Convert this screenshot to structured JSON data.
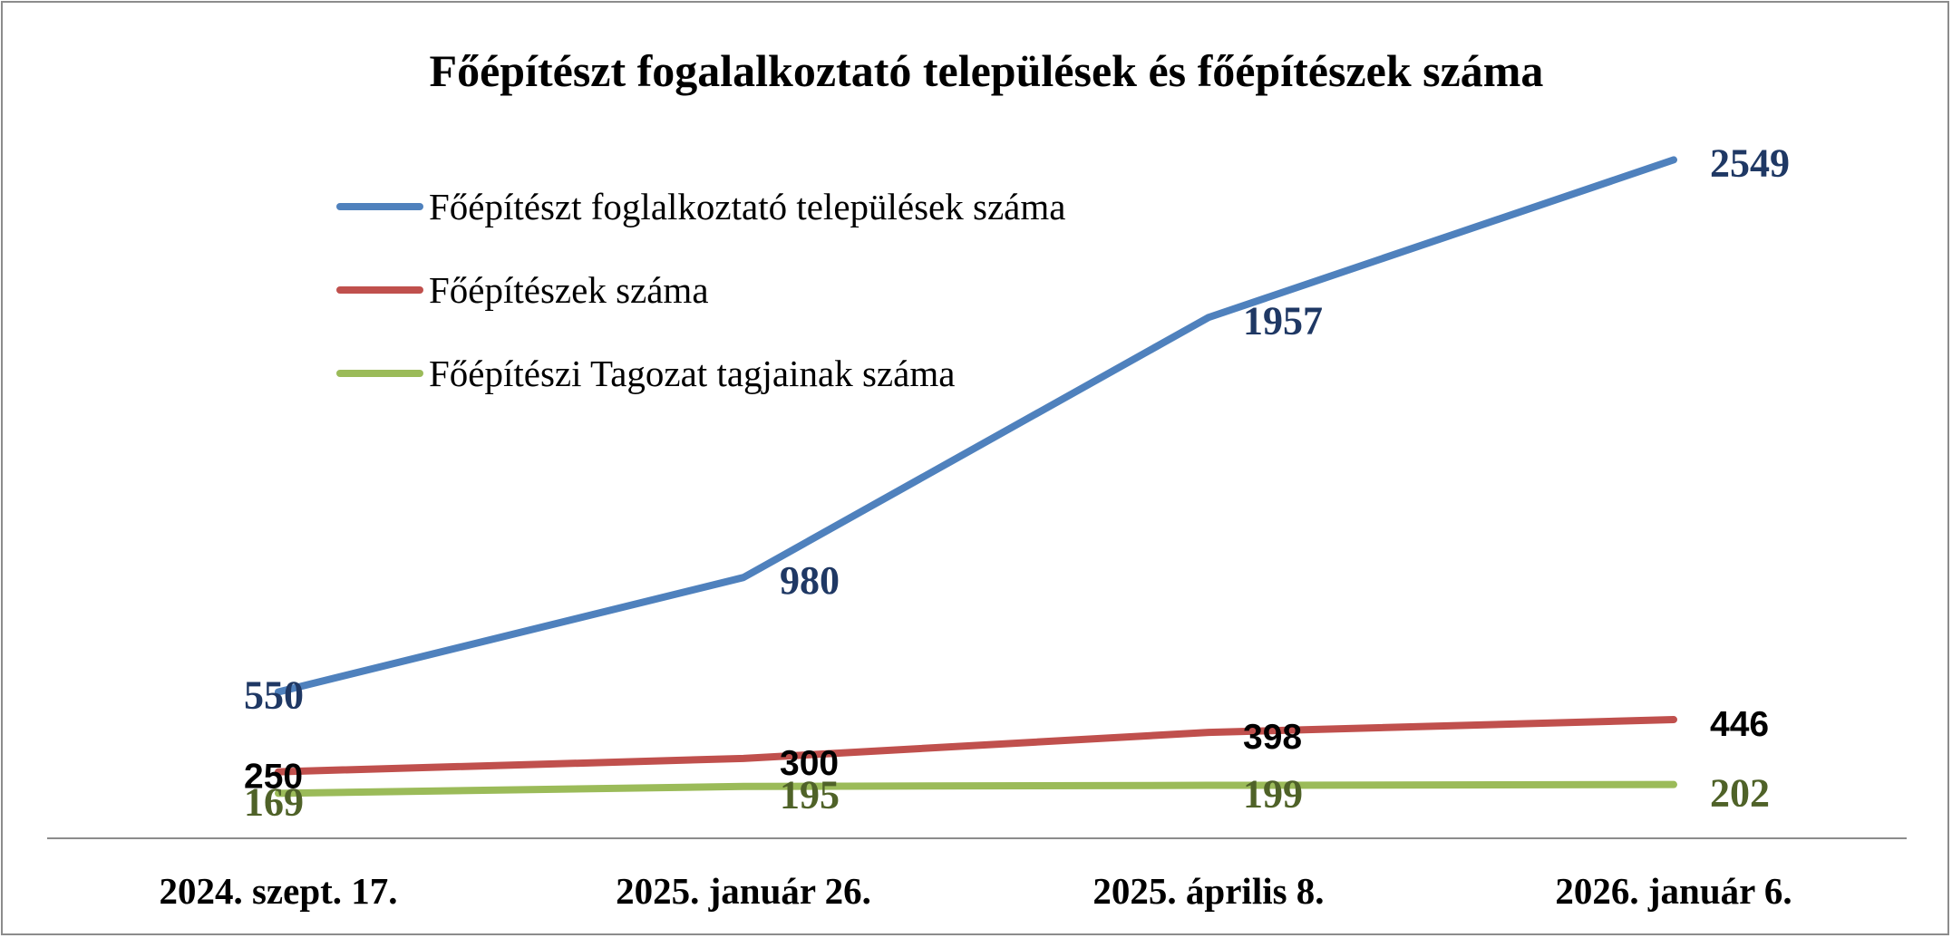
{
  "chart_data": {
    "type": "line",
    "title": "Főépítészt fogalalkoztató települések és főépítészek száma",
    "categories": [
      "2024. szept. 17.",
      "2025. január 26.",
      "2025. április 8.",
      "2026. január 6."
    ],
    "series": [
      {
        "name": "Főépítészt foglalkoztató települések száma",
        "values": [
          550,
          980,
          1957,
          2549
        ],
        "color": "#4f81bd",
        "label_color": "#1f3864"
      },
      {
        "name": "Főépítészek száma",
        "values": [
          250,
          300,
          398,
          446
        ],
        "color": "#c0504d",
        "label_color": "#000000"
      },
      {
        "name": "Főépítészi Tagozat tagjainak száma",
        "values": [
          169,
          195,
          199,
          202
        ],
        "color": "#9bbb59",
        "label_color": "#4f6228"
      }
    ],
    "xlabel": "",
    "ylabel": "",
    "ylim": [
      0,
      2850
    ],
    "grid": false,
    "legend": "top-left"
  }
}
